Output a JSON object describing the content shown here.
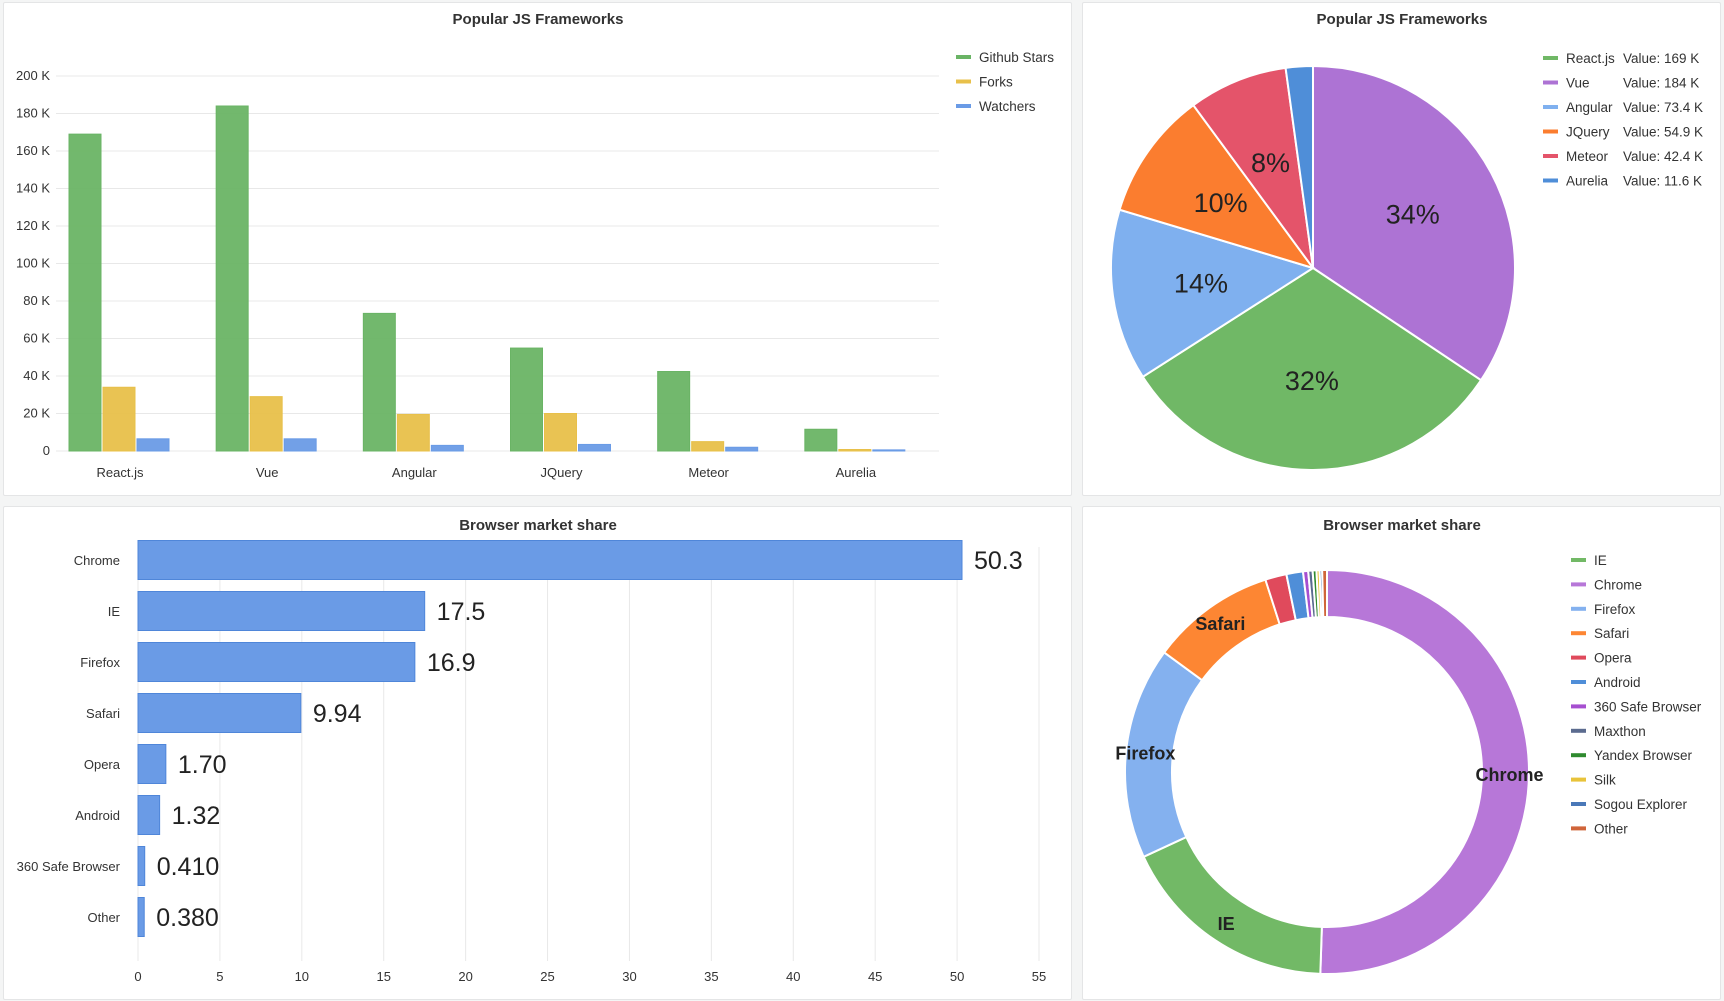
{
  "chart_data": [
    {
      "type": "bar",
      "title": "Popular JS Frameworks",
      "categories": [
        "React.js",
        "Vue",
        "Angular",
        "JQuery",
        "Meteor",
        "Aurelia"
      ],
      "series": [
        {
          "name": "Github Stars",
          "color": "#6ab465",
          "values": [
            169000,
            184000,
            73400,
            54900,
            42400,
            11600
          ]
        },
        {
          "name": "Forks",
          "color": "#e8c04a",
          "values": [
            34000,
            29000,
            19500,
            20000,
            5000,
            800
          ]
        },
        {
          "name": "Watchers",
          "color": "#6a9be6",
          "values": [
            6500,
            6500,
            3000,
            3500,
            2000,
            600
          ]
        }
      ],
      "ylim": [
        0,
        200000
      ],
      "y_ticks": [
        "0",
        "20 K",
        "40 K",
        "60 K",
        "80 K",
        "100 K",
        "120 K",
        "140 K",
        "160 K",
        "180 K",
        "200 K"
      ],
      "legend_position": "top-right",
      "grid": true
    },
    {
      "type": "pie",
      "title": "Popular JS Frameworks",
      "slices": [
        {
          "label": "React.js",
          "value": 169000,
          "value_text": "Value: 169 K",
          "pct_text": "32%",
          "color": "#70b866"
        },
        {
          "label": "Vue",
          "value": 184000,
          "value_text": "Value: 184 K",
          "pct_text": "34%",
          "color": "#ad73d4"
        },
        {
          "label": "Angular",
          "value": 73400,
          "value_text": "Value: 73.4 K",
          "pct_text": "14%",
          "color": "#7fb0ef"
        },
        {
          "label": "JQuery",
          "value": 54900,
          "value_text": "Value: 54.9 K",
          "pct_text": "10%",
          "color": "#fb7d2f"
        },
        {
          "label": "Meteor",
          "value": 42400,
          "value_text": "Value: 42.4 K",
          "pct_text": "8%",
          "color": "#e4546a"
        },
        {
          "label": "Aurelia",
          "value": 11600,
          "value_text": "Value: 11.6 K",
          "pct_text": "",
          "color": "#4f8ed8"
        }
      ],
      "legend_position": "top-right"
    },
    {
      "type": "bar",
      "orientation": "horizontal",
      "title": "Browser market share",
      "categories": [
        "Chrome",
        "IE",
        "Firefox",
        "Safari",
        "Opera",
        "Android",
        "360 Safe Browser",
        "Other"
      ],
      "values": [
        50.3,
        17.5,
        16.9,
        9.94,
        1.7,
        1.32,
        0.41,
        0.38
      ],
      "value_labels": [
        "50.3",
        "17.5",
        "16.9",
        "9.94",
        "1.70",
        "1.32",
        "0.410",
        "0.380"
      ],
      "color": "#6a9be6",
      "xlim": [
        0,
        55
      ],
      "x_ticks": [
        "0",
        "5",
        "10",
        "15",
        "20",
        "25",
        "30",
        "35",
        "40",
        "45",
        "50",
        "55"
      ],
      "grid": true
    },
    {
      "type": "pie",
      "subtype": "donut",
      "title": "Browser market share",
      "slices": [
        {
          "label": "IE",
          "value": 17.5,
          "color": "#72b966",
          "show_label": true
        },
        {
          "label": "Chrome",
          "value": 50.3,
          "color": "#b777d8",
          "show_label": true
        },
        {
          "label": "Firefox",
          "value": 16.9,
          "color": "#84b1ef",
          "show_label": true
        },
        {
          "label": "Safari",
          "value": 9.94,
          "color": "#fd8633",
          "show_label": true
        },
        {
          "label": "Opera",
          "value": 1.7,
          "color": "#e04a5c",
          "show_label": false
        },
        {
          "label": "Android",
          "value": 1.32,
          "color": "#4f8ed8",
          "show_label": false
        },
        {
          "label": "360 Safe Browser",
          "value": 0.41,
          "color": "#a64fd0",
          "show_label": false
        },
        {
          "label": "Maxthon",
          "value": 0.35,
          "color": "#5b6b8f",
          "show_label": false
        },
        {
          "label": "Yandex Browser",
          "value": 0.3,
          "color": "#2f8a2f",
          "show_label": false
        },
        {
          "label": "Silk",
          "value": 0.25,
          "color": "#e8c33a",
          "show_label": false
        },
        {
          "label": "Sogou Explorer",
          "value": 0.2,
          "color": "#4a78b8",
          "show_label": false
        },
        {
          "label": "Other",
          "value": 0.38,
          "color": "#d0653a",
          "show_label": false
        }
      ],
      "legend_position": "top-right"
    }
  ]
}
